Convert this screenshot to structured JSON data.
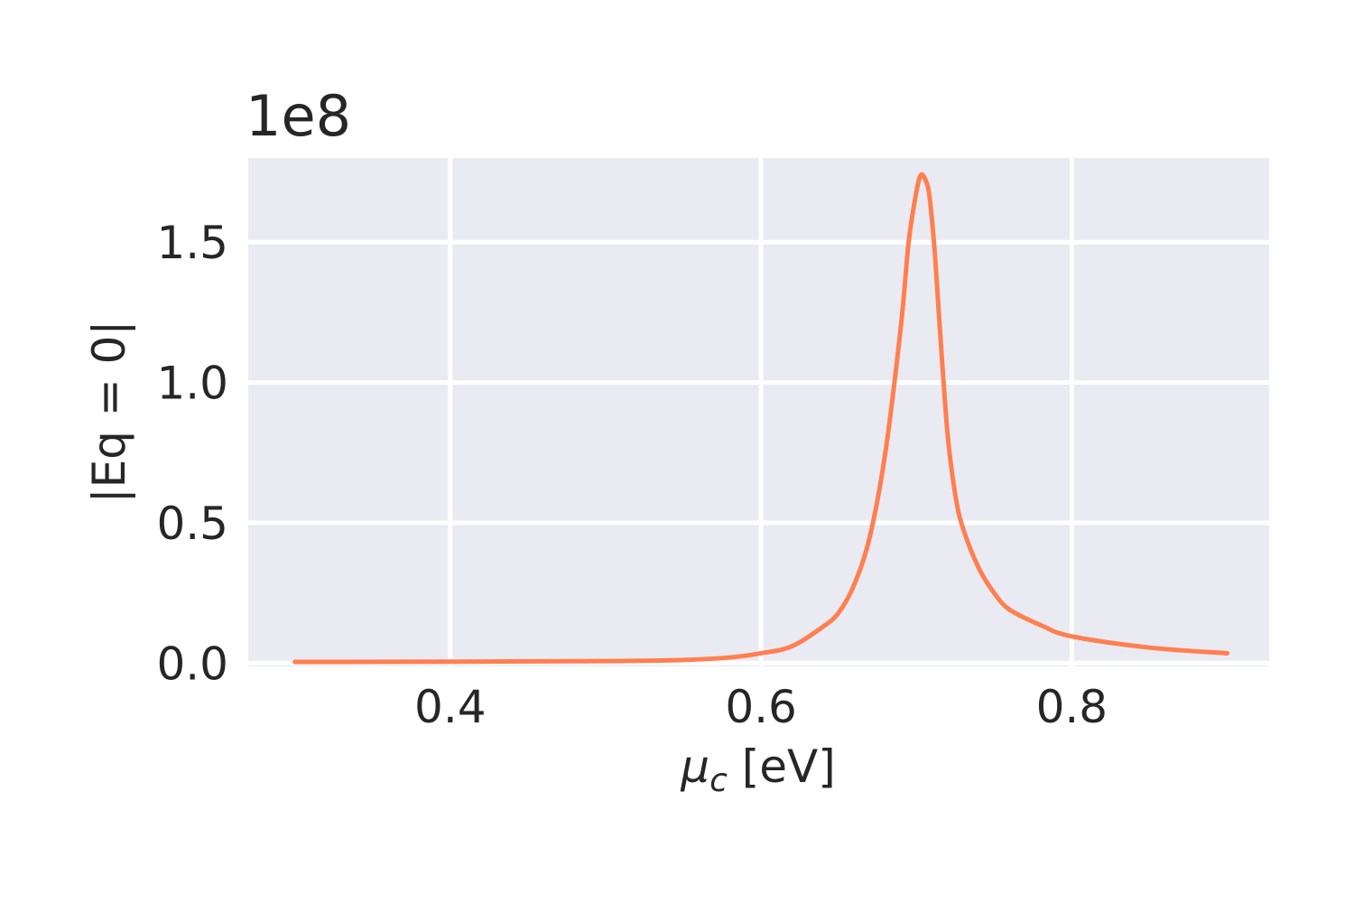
{
  "chart_data": {
    "type": "line",
    "title": "",
    "xlabel_symbol": "μ",
    "xlabel_subscript": "c",
    "xlabel_unit": " [eV]",
    "ylabel": "|Eq = 0|",
    "y_offset_label": "1e8",
    "y_scale": 100000000,
    "xlim": [
      0.27,
      0.927
    ],
    "ylim": [
      -1200000,
      180000000
    ],
    "x_ticks": [
      0.4,
      0.6,
      0.8
    ],
    "x_tick_labels": [
      "0.4",
      "0.6",
      "0.8"
    ],
    "y_ticks": [
      0,
      50000000,
      100000000,
      150000000
    ],
    "y_tick_labels": [
      "0.0",
      "0.5",
      "1.0",
      "1.5"
    ],
    "grid": true,
    "colors": {
      "plot_bg": "#eaeaf2",
      "grid": "#ffffff",
      "line": "#ff7f50",
      "text": "#262626"
    },
    "series": [
      {
        "name": "",
        "x": [
          0.3,
          0.4,
          0.5,
          0.55,
          0.58,
          0.6,
          0.62,
          0.64,
          0.65,
          0.66,
          0.67,
          0.68,
          0.69,
          0.695,
          0.7,
          0.703,
          0.706,
          0.708,
          0.71,
          0.712,
          0.715,
          0.72,
          0.725,
          0.73,
          0.74,
          0.75,
          0.76,
          0.78,
          0.8,
          0.85,
          0.9
        ],
        "y": [
          400000,
          500000,
          700000,
          1100000,
          2000000,
          3500000,
          6000000,
          13000000,
          18000000,
          28000000,
          45000000,
          75000000,
          120000000,
          150000000,
          168000000,
          174000000,
          172000000,
          168000000,
          158000000,
          145000000,
          120000000,
          82000000,
          60000000,
          48000000,
          34000000,
          25000000,
          19000000,
          13500000,
          9500000,
          5500000,
          3500000
        ]
      }
    ]
  }
}
